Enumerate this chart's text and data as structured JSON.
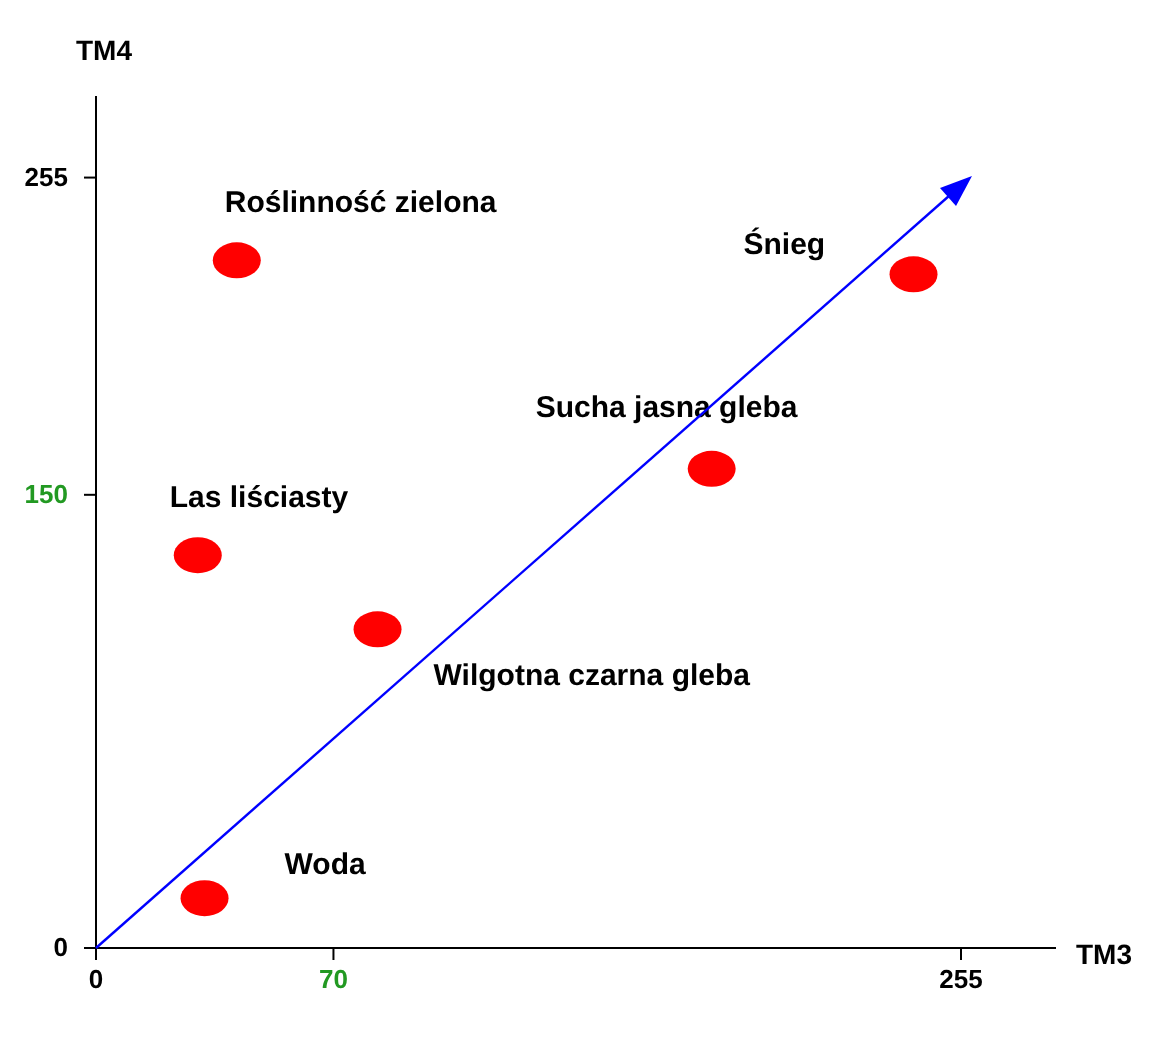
{
  "chart_data": {
    "type": "scatter",
    "xlabel": "TM3",
    "ylabel": "TM4",
    "xlim": [
      0,
      283
    ],
    "ylim": [
      0,
      282
    ],
    "xticks": [
      0,
      70,
      255
    ],
    "yticks": [
      0,
      150,
      255
    ],
    "grid": false,
    "legend": false,
    "marker": "circle",
    "series": [
      {
        "color": "#ff0000",
        "x": [
          32,
          30,
          41.5,
          83,
          181.5,
          241
        ],
        "values": [
          16.5,
          130,
          227.6,
          105.5,
          158.6,
          223
        ]
      }
    ],
    "annotations": [
      {
        "text": "Woda",
        "x": 32,
        "y": 16.5
      },
      {
        "text": "Las liściasty",
        "x": 30,
        "y": 130
      },
      {
        "text": "Roślinność zielona",
        "x": 41.5,
        "y": 227.6
      },
      {
        "text": "Wilgotna czarna gleba",
        "x": 83,
        "y": 105.5
      },
      {
        "text": "Sucha jasna gleba",
        "x": 181.5,
        "y": 158.6
      },
      {
        "text": "Śnieg",
        "x": 241,
        "y": 223
      }
    ]
  }
}
